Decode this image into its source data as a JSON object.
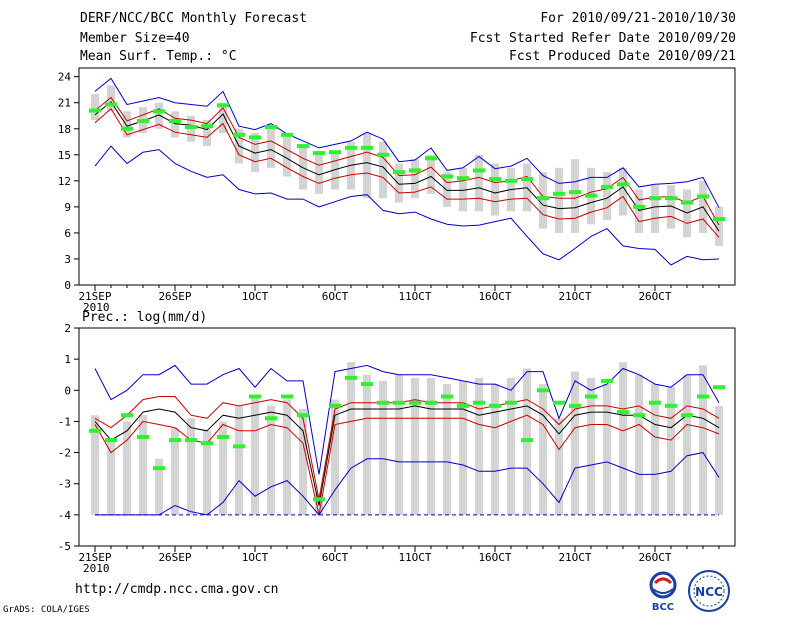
{
  "header": {
    "title": "DERF/NCC/BCC Monthly Forecast",
    "member_size": "Member Size=40",
    "variable": "Mean Surf. Temp.: °C",
    "period": "For 2010/09/21-2010/10/30",
    "refer_date": "Fcst Started Refer Date 2010/09/20",
    "produced_date": "Fcst Produced Date 2010/09/21"
  },
  "footer": {
    "url": "http://cmdp.ncc.cma.gov.cn",
    "grads": "GrADS: COLA/IGES",
    "logo_bcc": "BCC",
    "logo_ncc": "NCC"
  },
  "colors": {
    "max": "#0000cc",
    "min": "#0000cc",
    "ens_mean": "#000000",
    "std_band": "#cc0000",
    "member_box": "#d3d3d3",
    "observed_mark": "#33ee33"
  },
  "chart_data": [
    {
      "type": "line",
      "title": "Mean Surf. Temp.: °C",
      "x_ticks": [
        "21SEP\n2010",
        "26SEP",
        "1OCT",
        "6OCT",
        "11OCT",
        "16OCT",
        "21OCT",
        "26OCT"
      ],
      "x_tick_days": [
        1,
        6,
        11,
        16,
        21,
        26,
        31,
        36
      ],
      "x_range": [
        0,
        41
      ],
      "ylim": [
        0,
        25
      ],
      "y_ticks": [
        0,
        3,
        6,
        9,
        12,
        15,
        18,
        21,
        24
      ],
      "days": [
        1,
        2,
        3,
        4,
        5,
        6,
        7,
        8,
        9,
        10,
        11,
        12,
        13,
        14,
        15,
        16,
        17,
        18,
        19,
        20,
        21,
        22,
        23,
        24,
        25,
        26,
        27,
        28,
        29,
        30,
        31,
        32,
        33,
        34,
        35,
        36,
        37,
        38,
        39,
        40
      ],
      "series": [
        {
          "name": "max",
          "values": [
            22.3,
            23.8,
            20.8,
            21.2,
            21.6,
            21.0,
            20.8,
            20.6,
            22.3,
            18.3,
            17.9,
            18.6,
            17.4,
            16.6,
            15.8,
            16.2,
            16.6,
            17.6,
            16.8,
            14.2,
            14.4,
            15.8,
            13.2,
            13.5,
            14.8,
            13.4,
            13.7,
            14.6,
            12.6,
            11.7,
            11.9,
            12.4,
            12.4,
            13.5,
            11.3,
            11.6,
            11.7,
            11.9,
            12.4,
            8.9
          ]
        },
        {
          "name": "std_upper",
          "values": [
            20.1,
            21.6,
            18.9,
            19.6,
            20.3,
            19.2,
            19.0,
            18.6,
            20.4,
            17.0,
            16.2,
            16.6,
            15.6,
            14.6,
            13.8,
            14.3,
            14.8,
            15.3,
            14.7,
            12.6,
            12.7,
            13.6,
            11.8,
            12.0,
            12.4,
            11.8,
            12.0,
            12.5,
            10.2,
            10.0,
            10.0,
            10.7,
            11.1,
            12.4,
            9.8,
            10.1,
            10.2,
            9.5,
            10.2,
            6.9
          ]
        },
        {
          "name": "ens_mean",
          "values": [
            19.6,
            21.1,
            18.3,
            18.9,
            19.6,
            18.6,
            18.4,
            17.9,
            19.7,
            16.0,
            15.2,
            15.6,
            14.6,
            13.5,
            12.7,
            13.3,
            13.8,
            14.1,
            13.6,
            11.6,
            11.7,
            12.5,
            10.9,
            10.9,
            11.2,
            10.6,
            11.0,
            11.2,
            9.2,
            8.8,
            8.9,
            9.5,
            10.0,
            11.3,
            8.6,
            9.0,
            9.1,
            8.3,
            9.0,
            6.2
          ]
        },
        {
          "name": "std_lower",
          "values": [
            18.7,
            20.3,
            17.3,
            17.9,
            18.5,
            17.6,
            17.3,
            17.0,
            18.6,
            15.0,
            14.2,
            14.6,
            13.5,
            12.5,
            11.7,
            12.3,
            12.7,
            12.9,
            12.4,
            10.6,
            10.7,
            11.3,
            9.9,
            9.9,
            10.0,
            9.6,
            9.9,
            10.0,
            8.1,
            7.6,
            7.7,
            8.4,
            8.9,
            10.2,
            7.3,
            7.7,
            7.9,
            7.1,
            7.6,
            5.5
          ]
        },
        {
          "name": "min",
          "values": [
            13.7,
            16.0,
            14.0,
            15.3,
            15.6,
            14.0,
            13.1,
            12.4,
            12.7,
            11.0,
            10.5,
            10.6,
            9.9,
            9.9,
            9.0,
            9.6,
            10.2,
            10.4,
            8.6,
            8.2,
            8.4,
            7.6,
            7.0,
            6.8,
            6.9,
            7.3,
            7.7,
            5.6,
            3.6,
            2.9,
            4.2,
            5.6,
            6.5,
            4.5,
            4.2,
            4.1,
            2.3,
            3.3,
            2.9,
            3.0
          ]
        }
      ],
      "member_boxes": [
        [
          19,
          22
        ],
        [
          20,
          23
        ],
        [
          17,
          20
        ],
        [
          17.5,
          20.5
        ],
        [
          18,
          21
        ],
        [
          17,
          20
        ],
        [
          16.5,
          19.5
        ],
        [
          16,
          19
        ],
        [
          17.5,
          21
        ],
        [
          14,
          18
        ],
        [
          13,
          17.5
        ],
        [
          13.5,
          18
        ],
        [
          12.5,
          17.5
        ],
        [
          11,
          16
        ],
        [
          10.5,
          15
        ],
        [
          11,
          15.5
        ],
        [
          11,
          16.5
        ],
        [
          10,
          17.5
        ],
        [
          10,
          16.5
        ],
        [
          9.5,
          14
        ],
        [
          10,
          14.5
        ],
        [
          10.5,
          15
        ],
        [
          9,
          13
        ],
        [
          8.5,
          13.5
        ],
        [
          8.5,
          15
        ],
        [
          8,
          14
        ],
        [
          8.5,
          13.5
        ],
        [
          8.5,
          14
        ],
        [
          6.5,
          13
        ],
        [
          6,
          13.5
        ],
        [
          6,
          14.5
        ],
        [
          7,
          13.5
        ],
        [
          7.5,
          13
        ],
        [
          8,
          13.5
        ],
        [
          6,
          11
        ],
        [
          6,
          11.5
        ],
        [
          6.5,
          11.5
        ],
        [
          5.5,
          11
        ],
        [
          6,
          12
        ],
        [
          4.5,
          9
        ]
      ],
      "observed_marks": [
        20.1,
        20.8,
        18.0,
        18.9,
        20.0,
        18.9,
        18.2,
        18.3,
        20.7,
        17.3,
        17.0,
        18.2,
        17.3,
        16.0,
        15.2,
        15.3,
        15.8,
        15.8,
        15.0,
        13.0,
        13.2,
        14.6,
        12.5,
        12.3,
        13.2,
        12.2,
        12.0,
        12.2,
        10.0,
        10.5,
        10.7,
        10.3,
        11.3,
        11.6,
        9.0,
        10.0,
        10.0,
        9.5,
        10.2,
        7.6
      ]
    },
    {
      "type": "line",
      "title": "Prec.: log(mm/d)",
      "x_ticks": [
        "21SEP\n2010",
        "26SEP",
        "1OCT",
        "6OCT",
        "11OCT",
        "16OCT",
        "21OCT",
        "26OCT"
      ],
      "x_tick_days": [
        1,
        6,
        11,
        16,
        21,
        26,
        31,
        36
      ],
      "x_range": [
        0,
        41
      ],
      "ylim": [
        -5,
        2
      ],
      "y_ticks": [
        -5,
        -4,
        -3,
        -2,
        -1,
        0,
        1,
        2
      ],
      "days": [
        1,
        2,
        3,
        4,
        5,
        6,
        7,
        8,
        9,
        10,
        11,
        12,
        13,
        14,
        15,
        16,
        17,
        18,
        19,
        20,
        21,
        22,
        23,
        24,
        25,
        26,
        27,
        28,
        29,
        30,
        31,
        32,
        33,
        34,
        35,
        36,
        37,
        38,
        39,
        40
      ],
      "series": [
        {
          "name": "max",
          "values": [
            0.7,
            -0.3,
            0.0,
            0.5,
            0.5,
            0.8,
            0.2,
            0.2,
            0.5,
            0.7,
            0.1,
            0.7,
            0.3,
            0.3,
            -2.7,
            0.6,
            0.7,
            0.8,
            0.6,
            0.5,
            0.5,
            0.5,
            0.4,
            0.3,
            0.2,
            0.2,
            0.0,
            0.6,
            0.6,
            -0.9,
            0.3,
            0.0,
            0.2,
            0.7,
            0.5,
            0.2,
            0.1,
            0.5,
            0.5,
            -0.4
          ]
        },
        {
          "name": "std_upper",
          "values": [
            -0.9,
            -1.2,
            -0.8,
            -0.3,
            -0.2,
            -0.2,
            -0.8,
            -0.9,
            -0.4,
            -0.5,
            -0.4,
            -0.3,
            -0.4,
            -0.9,
            -3.5,
            -0.6,
            -0.4,
            -0.4,
            -0.4,
            -0.4,
            -0.3,
            -0.4,
            -0.4,
            -0.4,
            -0.6,
            -0.5,
            -0.4,
            -0.3,
            -0.6,
            -1.1,
            -0.6,
            -0.5,
            -0.5,
            -0.6,
            -0.5,
            -0.8,
            -0.9,
            -0.5,
            -0.6,
            -0.9
          ]
        },
        {
          "name": "ens_mean",
          "values": [
            -1.0,
            -1.6,
            -1.3,
            -0.7,
            -0.6,
            -0.7,
            -1.2,
            -1.3,
            -0.8,
            -0.9,
            -0.8,
            -0.7,
            -0.8,
            -1.3,
            -3.7,
            -0.8,
            -0.6,
            -0.6,
            -0.6,
            -0.6,
            -0.5,
            -0.6,
            -0.6,
            -0.6,
            -0.8,
            -0.7,
            -0.6,
            -0.5,
            -0.8,
            -1.4,
            -0.8,
            -0.7,
            -0.7,
            -0.8,
            -0.8,
            -1.1,
            -1.2,
            -0.8,
            -0.9,
            -1.2
          ]
        },
        {
          "name": "std_lower",
          "values": [
            -1.1,
            -2.0,
            -1.6,
            -1.0,
            -1.1,
            -1.2,
            -1.6,
            -1.7,
            -1.1,
            -1.3,
            -1.3,
            -1.1,
            -1.2,
            -1.7,
            -4.0,
            -1.1,
            -1.0,
            -0.9,
            -0.9,
            -0.9,
            -0.9,
            -0.9,
            -0.9,
            -0.9,
            -1.1,
            -1.2,
            -1.0,
            -0.8,
            -1.1,
            -1.9,
            -1.2,
            -1.1,
            -1.1,
            -1.3,
            -1.1,
            -1.5,
            -1.6,
            -1.1,
            -1.2,
            -1.4
          ]
        },
        {
          "name": "min",
          "values": [
            -4.0,
            -4.0,
            -4.0,
            -4.0,
            -4.0,
            -3.7,
            -3.9,
            -4.0,
            -3.6,
            -2.9,
            -3.4,
            -3.1,
            -2.9,
            -3.4,
            -4.0,
            -3.2,
            -2.5,
            -2.2,
            -2.2,
            -2.3,
            -2.3,
            -2.3,
            -2.3,
            -2.4,
            -2.6,
            -2.6,
            -2.5,
            -2.5,
            -3.0,
            -3.6,
            -2.5,
            -2.4,
            -2.3,
            -2.5,
            -2.7,
            -2.7,
            -2.6,
            -2.1,
            -2.0,
            -2.8
          ]
        },
        {
          "name": "zero_floor",
          "values": [
            -4.0,
            -4.0,
            -4.0,
            -4.0,
            -4.0,
            -4.0,
            -4.0,
            -4.0,
            -4.0,
            -4.0,
            -4.0,
            -4.0,
            -4.0,
            -4.0,
            -4.0,
            -4.0,
            -4.0,
            -4.0,
            -4.0,
            -4.0,
            -4.0,
            -4.0,
            -4.0,
            -4.0,
            -4.0,
            -4.0,
            -4.0,
            -4.0,
            -4.0,
            -4.0,
            -4.0,
            -4.0,
            -4.0,
            -4.0,
            -4.0,
            -4.0,
            -4.0,
            -4.0,
            -4.0,
            -4.0
          ]
        }
      ],
      "member_boxes": [
        [
          -4,
          -0.8
        ],
        [
          -4,
          -1.6
        ],
        [
          -4,
          -1
        ],
        [
          -4,
          -0.8
        ],
        [
          -4,
          -2.2
        ],
        [
          -4,
          -1.2
        ],
        [
          -4,
          -0.9
        ],
        [
          -4,
          -1.3
        ],
        [
          -4,
          -1
        ],
        [
          -4,
          -0.5
        ],
        [
          -4,
          -0.2
        ],
        [
          -4,
          -0.5
        ],
        [
          -4,
          -0.3
        ],
        [
          -4,
          -0.6
        ],
        [
          -4,
          -3.3
        ],
        [
          -4,
          -0.3
        ],
        [
          -4,
          0.9
        ],
        [
          -4,
          0.5
        ],
        [
          -4,
          0.3
        ],
        [
          -4,
          0.5
        ],
        [
          -4,
          0.4
        ],
        [
          -4,
          0.4
        ],
        [
          -4,
          0.2
        ],
        [
          -4,
          0.3
        ],
        [
          -4,
          0.4
        ],
        [
          -4,
          0.2
        ],
        [
          -4,
          0.4
        ],
        [
          -4,
          0.7
        ],
        [
          -4,
          0.2
        ],
        [
          -4,
          -0.9
        ],
        [
          -4,
          0.6
        ],
        [
          -4,
          0.4
        ],
        [
          -4,
          0.2
        ],
        [
          -4,
          0.9
        ],
        [
          -4,
          0.5
        ],
        [
          -4,
          0.2
        ],
        [
          -4,
          0.1
        ],
        [
          -4,
          0.5
        ],
        [
          -4,
          0.8
        ],
        [
          -4,
          -0.5
        ]
      ],
      "observed_marks": [
        -1.3,
        -1.6,
        -0.8,
        -1.5,
        -2.5,
        -1.6,
        -1.6,
        -1.7,
        -1.5,
        -1.8,
        -0.2,
        -0.9,
        -0.2,
        -0.8,
        -3.5,
        -0.5,
        0.4,
        0.2,
        -0.4,
        -0.4,
        -0.4,
        -0.4,
        -0.2,
        -0.5,
        -0.4,
        -0.5,
        -0.4,
        -1.6,
        0.0,
        -0.4,
        -0.5,
        -0.2,
        0.3,
        -0.7,
        -0.8,
        -0.4,
        -0.5,
        -0.8,
        -0.2,
        0.1
      ]
    }
  ]
}
